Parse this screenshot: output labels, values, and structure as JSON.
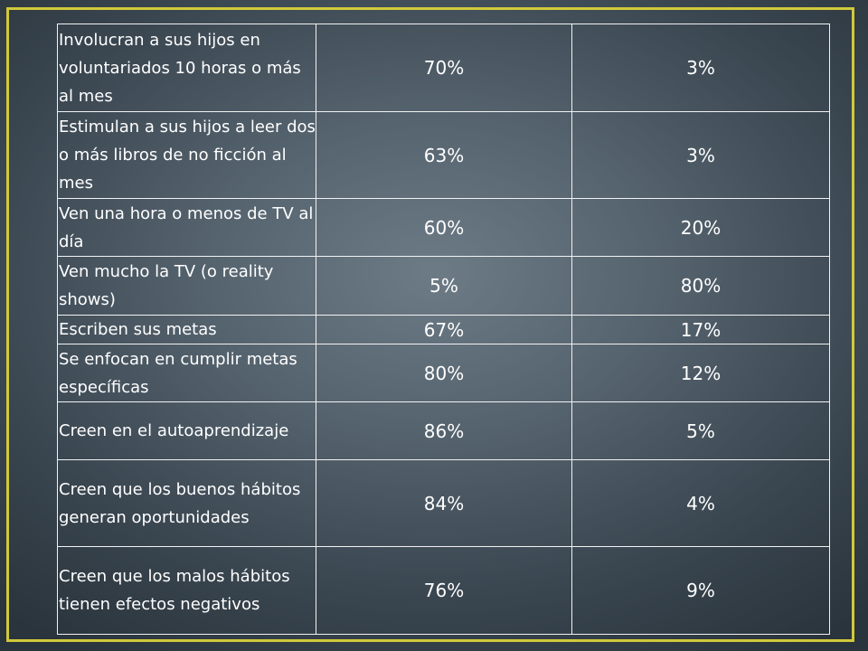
{
  "rows": [
    {
      "label": "Involucran a sus hijos en voluntariados 10 horas o más al mes",
      "v1": "70%",
      "v2": "3%"
    },
    {
      "label": "Estimulan a sus hijos a leer dos o más libros de no ficción al mes",
      "v1": "63%",
      "v2": "3%"
    },
    {
      "label": "Ven una hora o menos de TV al día",
      "v1": "60%",
      "v2": "20%"
    },
    {
      "label": "Ven mucho la TV (o reality shows)",
      "v1": "5%",
      "v2": "80%"
    },
    {
      "label": "Escriben sus metas",
      "v1": "67%",
      "v2": "17%"
    },
    {
      "label": "Se enfocan en cumplir metas específicas",
      "v1": "80%",
      "v2": "12%"
    },
    {
      "label": "Creen en el autoaprendizaje",
      "v1": "86%",
      "v2": "5%"
    },
    {
      "label": "Creen que los buenos hábitos generan oportunidades",
      "v1": "84%",
      "v2": "4%"
    },
    {
      "label": "Creen que los malos hábitos tienen efectos negativos",
      "v1": "76%",
      "v2": "9%"
    }
  ],
  "colors": {
    "border_accent": "#d1c93a",
    "text": "#ffffff"
  }
}
